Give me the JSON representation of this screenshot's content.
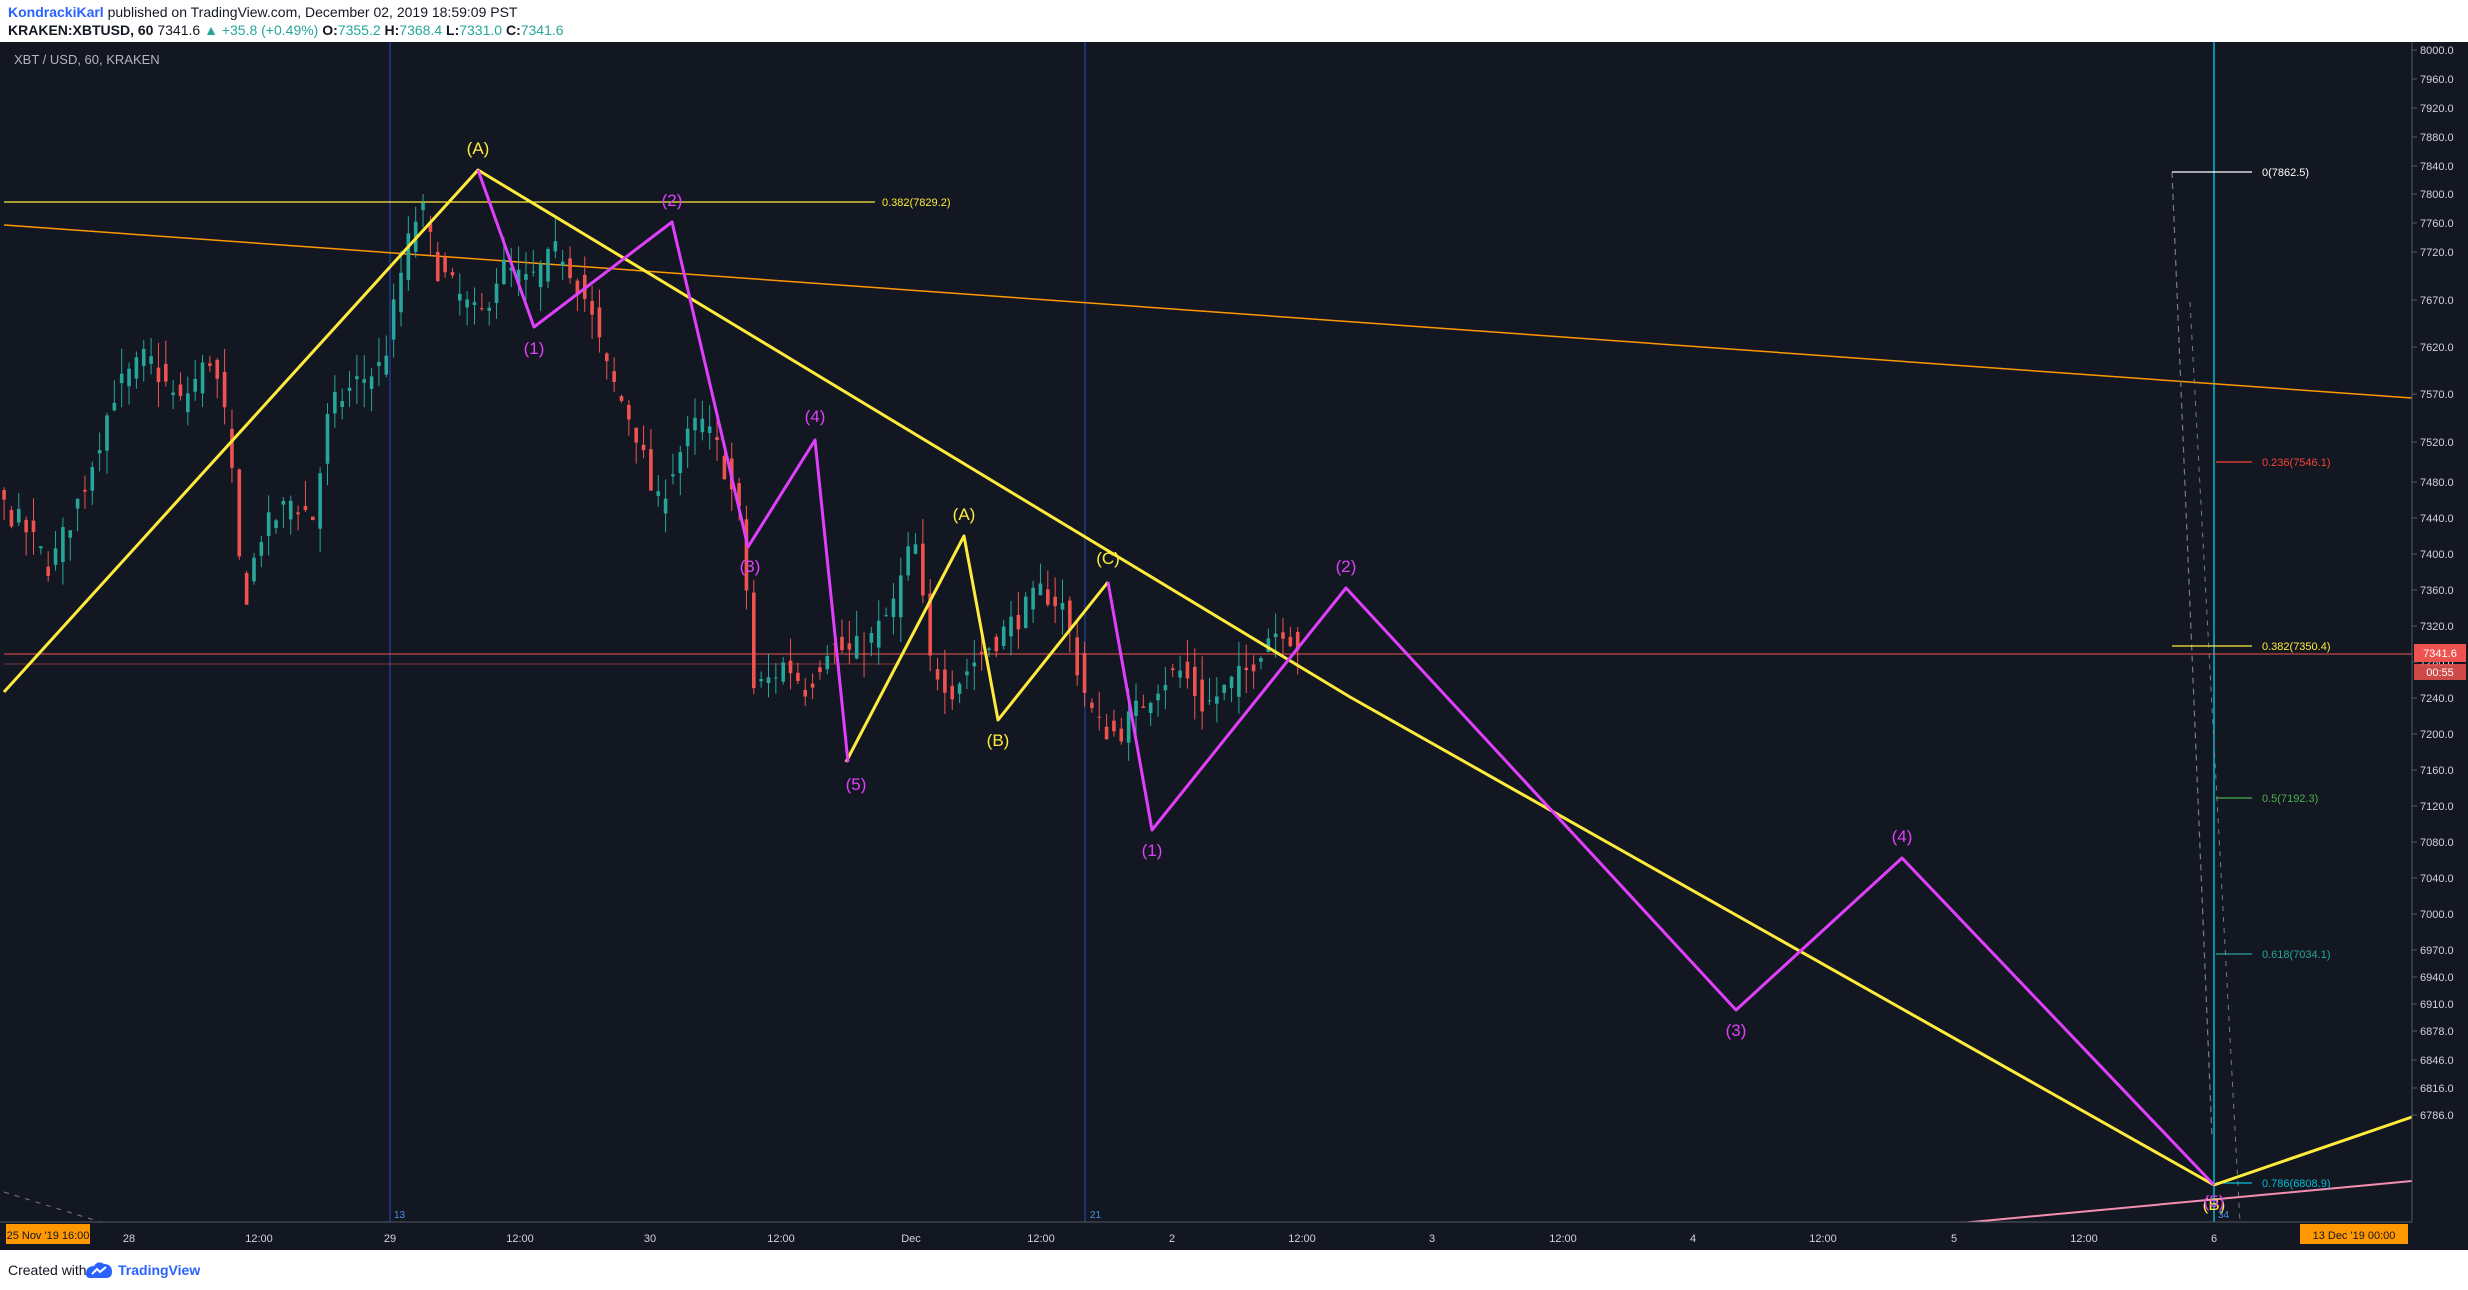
{
  "header": {
    "author": "KondrackiKarl",
    "published_text": "published on TradingView.com, December 02, 2019 18:59:09 PST",
    "symbol_line": "KRAKEN:XBTUSD, 60",
    "last": "7341.6",
    "change": "▲ +35.8 (+0.49%)",
    "o_label": "O:",
    "o_value": "7355.2",
    "h_label": "H:",
    "h_value": "7368.4",
    "l_label": "L:",
    "l_value": "7331.0",
    "c_label": "C:",
    "c_value": "7341.6"
  },
  "chart": {
    "title": "XBT / USD, 60, KRAKEN",
    "price_ticks": [
      "8000.0",
      "7960.0",
      "7920.0",
      "7880.0",
      "7840.0",
      "7800.0",
      "7760.0",
      "7720.0",
      "7670.0",
      "7620.0",
      "7570.0",
      "7520.0",
      "7480.0",
      "7440.0",
      "7400.0",
      "7360.0",
      "7320.0",
      "7280.0",
      "7240.0",
      "7200.0",
      "7160.0",
      "7120.0",
      "7080.0",
      "7040.0",
      "7000.0",
      "6970.0",
      "6940.0",
      "6910.0",
      "6878.0",
      "6846.0",
      "6816.0",
      "6786.0"
    ],
    "current_price": "7341.6",
    "countdown": "00:55",
    "time_ticks": [
      "28",
      "12:00",
      "29",
      "12:00",
      "30",
      "12:00",
      "Dec",
      "12:00",
      "2",
      "12:00",
      "3",
      "12:00",
      "4",
      "12:00",
      "5",
      "12:00",
      "6"
    ],
    "start_date": "25 Nov '19   16:00",
    "end_date": "13 Dec '19   00:00",
    "session_markers": [
      "13",
      "21",
      "34"
    ],
    "fib_levels": [
      "0(7862.5)",
      "0.236(7546.1)",
      "0.382(7350.4)",
      "0.5(7192.3)",
      "0.618(7034.1)",
      "0.786(6808.9)"
    ],
    "left_fib": "0.382(7829.2)",
    "wave_labels_yellow": [
      "(A)",
      "(A)",
      "(B)",
      "(C)",
      "(B)"
    ],
    "wave_labels_magenta": [
      "(1)",
      "(2)",
      "(3)",
      "(4)",
      "(5)",
      "(1)",
      "(2)",
      "(3)",
      "(4)",
      "(5)"
    ],
    "colors": {
      "background": "#131722",
      "up": "#26a69a",
      "down": "#ef5350",
      "yellow": "#ffeb3b",
      "magenta": "#e040fb",
      "orange_line": "#ff9800",
      "blue_line": "#2962ff"
    }
  },
  "footer": {
    "created_with": "Created with",
    "brand": "TradingView"
  }
}
